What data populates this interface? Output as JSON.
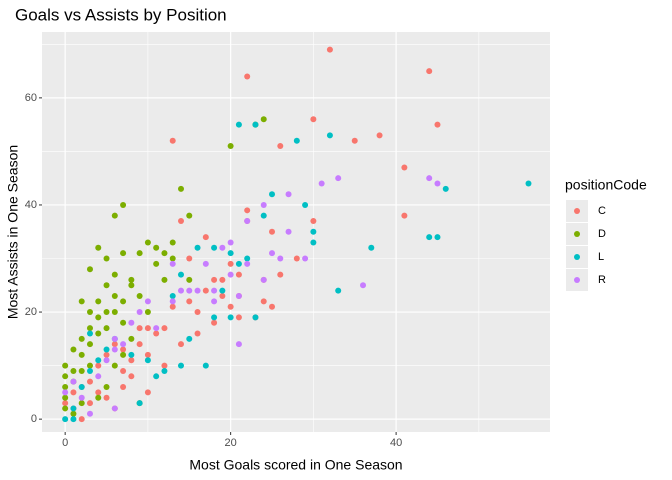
{
  "chart_data": {
    "type": "scatter",
    "title": "Goals vs Assists by Position",
    "x_label": "Most Goals scored in One Season",
    "y_label": "Most Assists in One Season",
    "legend_title": "positionCode",
    "legend": "right",
    "grid": true,
    "xlim": [
      -2.8,
      58.6
    ],
    "ylim": [
      -2.4,
      72.3
    ],
    "xticks": [
      0,
      20,
      40
    ],
    "yticks": [
      0,
      20,
      40,
      60
    ],
    "x_minor_ticks": [
      10,
      30,
      50
    ],
    "y_minor_ticks": [
      10,
      30,
      50,
      70
    ],
    "series": [
      {
        "name": "C",
        "color": "#F8766D",
        "x": [
          13,
          22,
          32,
          44,
          30,
          45,
          35,
          38,
          26,
          41,
          41,
          30,
          22,
          22,
          25,
          14,
          17,
          15,
          18,
          19,
          20,
          21,
          21,
          24,
          25,
          21,
          23,
          19,
          17,
          15,
          13,
          12,
          11,
          10,
          9,
          9,
          8,
          7,
          7,
          6,
          5,
          4,
          3,
          2,
          1,
          0,
          1,
          2,
          3,
          4,
          5,
          6,
          7,
          8,
          10,
          12,
          14,
          16,
          18,
          20,
          24,
          26,
          28,
          16,
          10
        ],
        "values": [
          52,
          64,
          69,
          65,
          56,
          55,
          52,
          53,
          51,
          47,
          38,
          37,
          39,
          37,
          35,
          37,
          34,
          30,
          26,
          26,
          29,
          27,
          23,
          22,
          21,
          19,
          19,
          23,
          24,
          22,
          21,
          17,
          16,
          17,
          17,
          14,
          11,
          13,
          9,
          14,
          12,
          10,
          7,
          6,
          5,
          3,
          2,
          0,
          3,
          5,
          4,
          2,
          6,
          8,
          12,
          10,
          14,
          16,
          18,
          21,
          26,
          27,
          30,
          20,
          5
        ]
      },
      {
        "name": "D",
        "color": "#7CAE00",
        "x": [
          24,
          20,
          23,
          7,
          6,
          14,
          10,
          11,
          12,
          9,
          7,
          5,
          3,
          4,
          6,
          8,
          5,
          4,
          2,
          1,
          0,
          0,
          0,
          0,
          0,
          1,
          1,
          2,
          2,
          3,
          3,
          3,
          4,
          4,
          5,
          5,
          6,
          6,
          7,
          7,
          8,
          9,
          10,
          11,
          12,
          13,
          15,
          15,
          13,
          9,
          2,
          4,
          5,
          6,
          7,
          8,
          1,
          2,
          3
        ],
        "values": [
          56,
          51,
          55,
          40,
          38,
          43,
          33,
          32,
          31,
          31,
          31,
          30,
          28,
          32,
          27,
          25,
          25,
          22,
          22,
          13,
          10,
          8,
          6,
          4,
          2,
          9,
          7,
          15,
          12,
          20,
          17,
          14,
          19,
          16,
          20,
          17,
          23,
          20,
          22,
          18,
          26,
          23,
          20,
          29,
          26,
          33,
          38,
          26,
          30,
          3,
          3,
          4,
          6,
          10,
          12,
          15,
          1,
          9,
          10
        ]
      },
      {
        "name": "L",
        "color": "#00BFC4",
        "x": [
          56,
          46,
          44,
          45,
          37,
          33,
          32,
          28,
          21,
          23,
          25,
          29,
          30,
          30,
          24,
          22,
          20,
          18,
          16,
          14,
          13,
          18,
          20,
          23,
          17,
          14,
          11,
          9,
          12,
          10,
          8,
          6,
          5,
          4,
          3,
          2,
          1,
          0,
          1,
          3,
          15,
          19,
          21
        ],
        "values": [
          44,
          43,
          34,
          34,
          32,
          24,
          53,
          52,
          55,
          55,
          42,
          40,
          35,
          33,
          38,
          30,
          31,
          32,
          32,
          27,
          23,
          19,
          19,
          19,
          10,
          10,
          8,
          3,
          9,
          11,
          12,
          15,
          13,
          11,
          9,
          6,
          2,
          0,
          0,
          16,
          15,
          24,
          29
        ]
      },
      {
        "name": "R",
        "color": "#C77CFF",
        "x": [
          44,
          45,
          33,
          31,
          27,
          24,
          22,
          20,
          19,
          17,
          13,
          15,
          13,
          16,
          18,
          21,
          29,
          27,
          26,
          22,
          20,
          36,
          25,
          10,
          8,
          7,
          6,
          5,
          6,
          3,
          2,
          1,
          0,
          4,
          6,
          9,
          11,
          14,
          18,
          21,
          24
        ],
        "values": [
          45,
          44,
          45,
          44,
          42,
          40,
          37,
          33,
          32,
          29,
          29,
          24,
          22,
          24,
          22,
          14,
          30,
          35,
          30,
          29,
          27,
          25,
          31,
          22,
          18,
          14,
          13,
          11,
          2,
          1,
          4,
          7,
          5,
          8,
          15,
          20,
          17,
          24,
          24,
          23,
          26
        ]
      }
    ]
  }
}
